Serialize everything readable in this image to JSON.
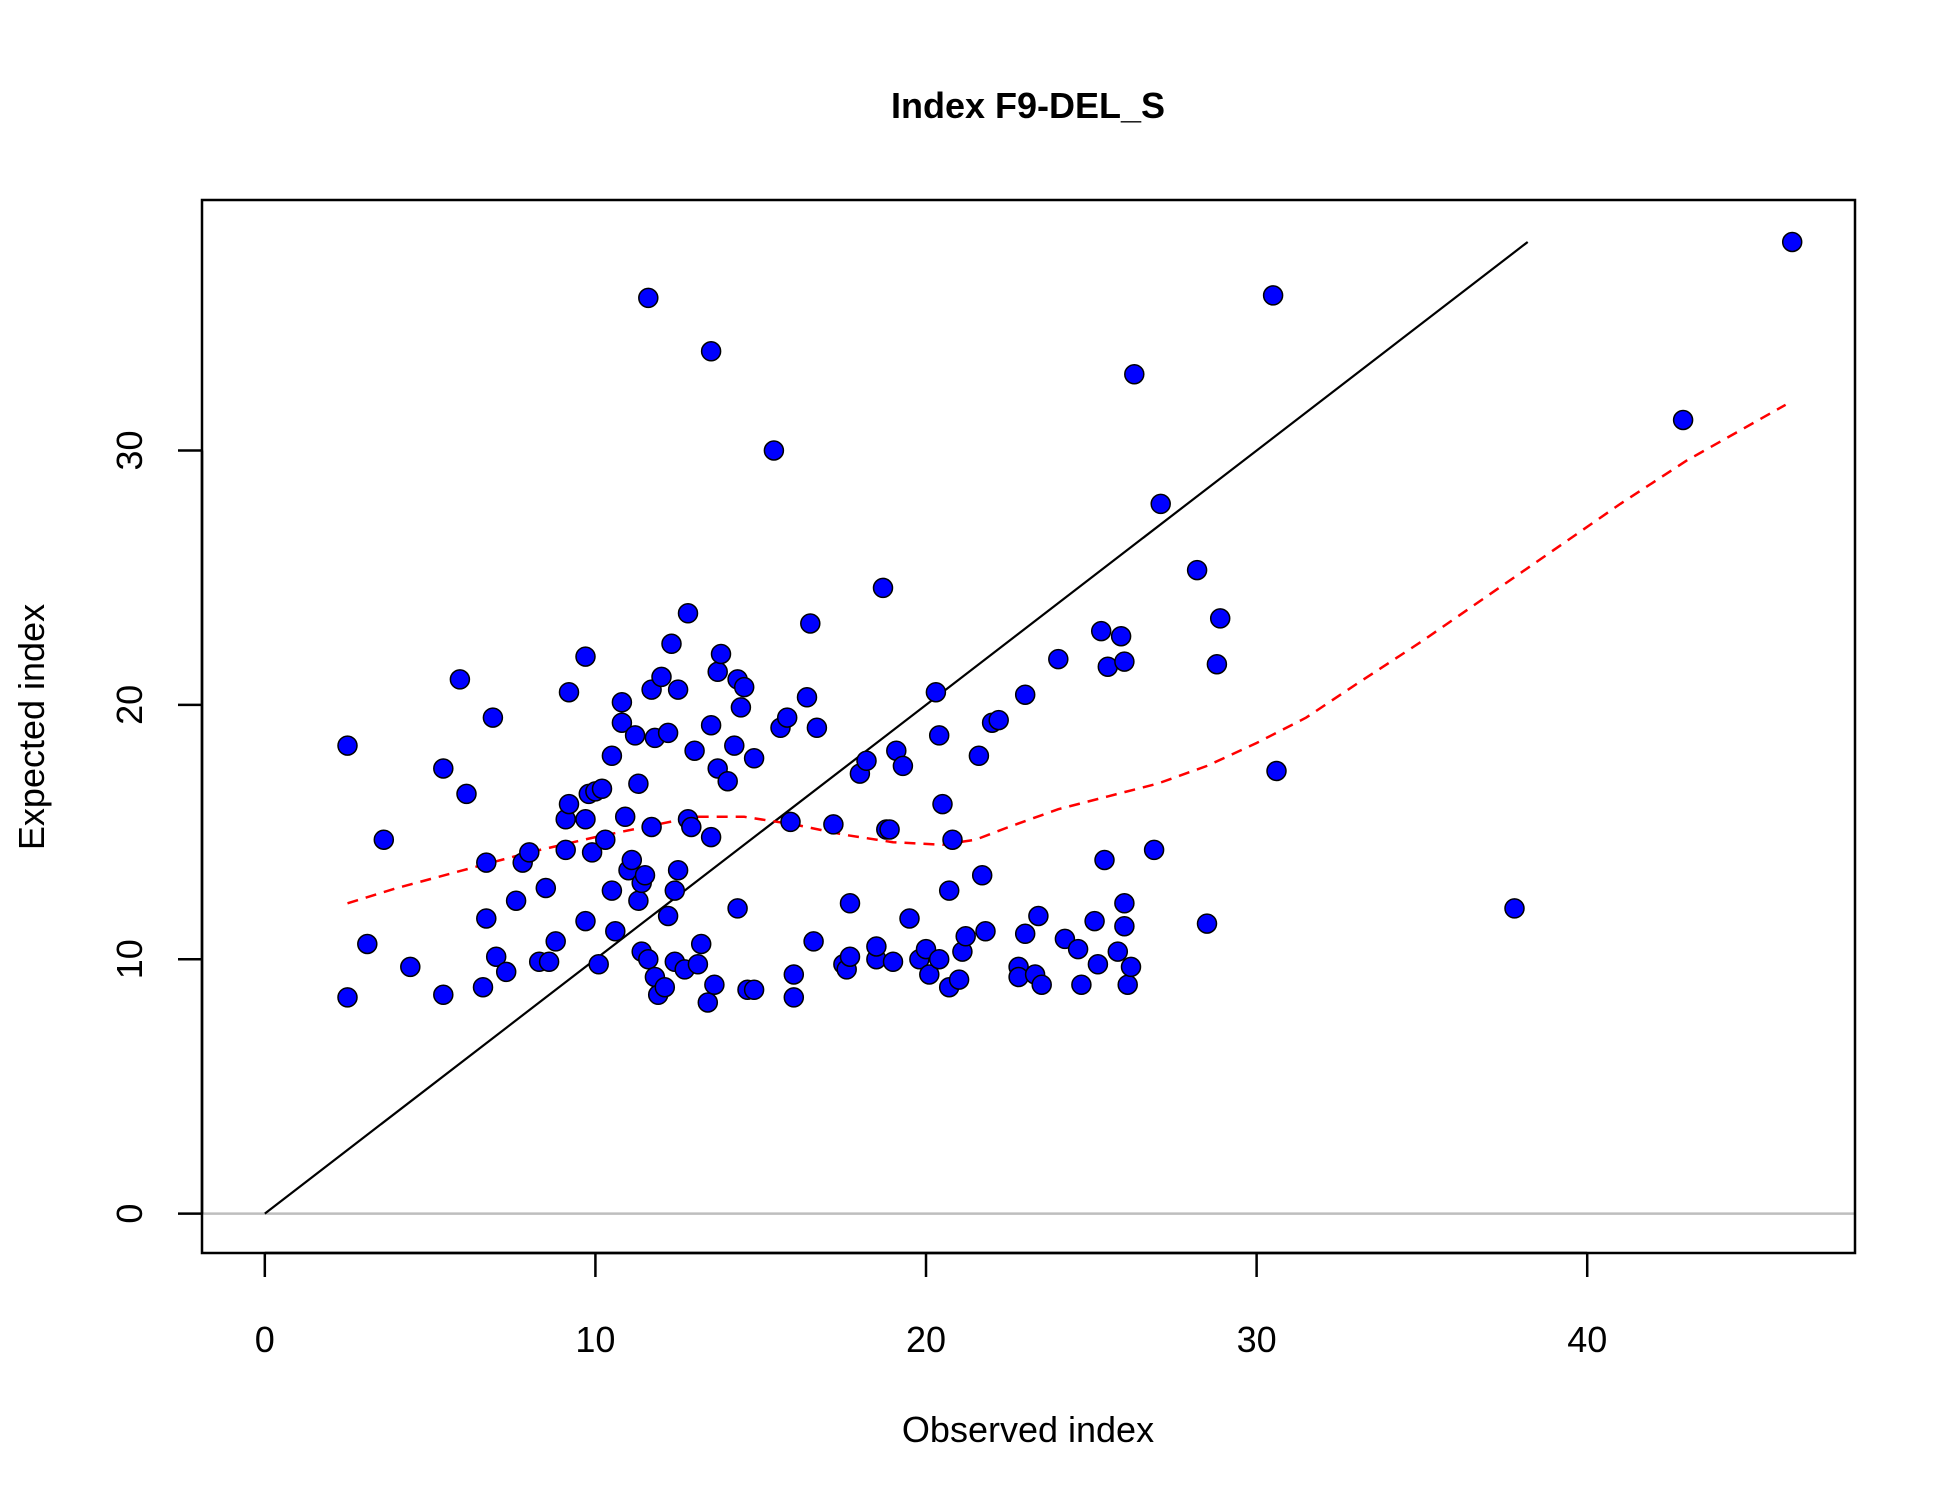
{
  "chart_data": {
    "type": "scatter",
    "title": "Index F9-DEL_S",
    "xlabel": "Observed index",
    "ylabel": "Expected index",
    "xlim": [
      -1.9,
      48.1
    ],
    "ylim": [
      -1.55,
      39.85
    ],
    "xticks": [
      0,
      10,
      20,
      30,
      40
    ],
    "yticks": [
      0,
      10,
      20,
      30
    ],
    "x_tick_labels": [
      "0",
      "10",
      "20",
      "30",
      "40"
    ],
    "y_tick_labels": [
      "0",
      "10",
      "20",
      "30"
    ],
    "grid": false,
    "legend": "none",
    "colors": {
      "points": "#0000ff",
      "point_outline": "#000000",
      "identity_line": "#000000",
      "smooth_line": "#ff0000",
      "zero_line": "#bebebe"
    },
    "reference_lines": {
      "identity": {
        "x": [
          0,
          38.2
        ],
        "y": [
          0,
          38.2
        ]
      },
      "zero": {
        "y": 0
      }
    },
    "smooth_curve": {
      "x": [
        2.5,
        4,
        6,
        8,
        10,
        11.5,
        13,
        14.5,
        16,
        17.5,
        19,
        20.5,
        21.5,
        22.5,
        24,
        25.5,
        27,
        28.5,
        30,
        31.5,
        33,
        35,
        37,
        39,
        41,
        43,
        46
      ],
      "y": [
        12.2,
        12.8,
        13.5,
        14.2,
        14.8,
        15.2,
        15.6,
        15.6,
        15.3,
        14.9,
        14.6,
        14.5,
        14.7,
        15.2,
        15.9,
        16.4,
        16.9,
        17.6,
        18.5,
        19.5,
        20.8,
        22.5,
        24.3,
        26.1,
        27.9,
        29.6,
        31.8
      ]
    },
    "series": [
      {
        "points": [
          [
            2.5,
            18.4
          ],
          [
            2.5,
            8.5
          ],
          [
            3.1,
            10.6
          ],
          [
            3.6,
            14.7
          ],
          [
            4.4,
            9.7
          ],
          [
            5.4,
            17.5
          ],
          [
            5.4,
            8.6
          ],
          [
            5.9,
            21.0
          ],
          [
            6.1,
            16.5
          ],
          [
            6.6,
            8.9
          ],
          [
            6.7,
            11.6
          ],
          [
            6.7,
            13.8
          ],
          [
            6.9,
            19.5
          ],
          [
            7.0,
            10.1
          ],
          [
            7.3,
            9.5
          ],
          [
            7.6,
            12.3
          ],
          [
            7.8,
            13.8
          ],
          [
            8.0,
            14.2
          ],
          [
            8.3,
            9.9
          ],
          [
            8.5,
            12.8
          ],
          [
            8.6,
            9.9
          ],
          [
            8.8,
            10.7
          ],
          [
            9.1,
            14.3
          ],
          [
            9.1,
            15.5
          ],
          [
            9.2,
            16.1
          ],
          [
            9.2,
            20.5
          ],
          [
            9.7,
            21.9
          ],
          [
            9.7,
            15.5
          ],
          [
            9.7,
            11.5
          ],
          [
            9.8,
            16.5
          ],
          [
            9.9,
            14.2
          ],
          [
            10.0,
            16.6
          ],
          [
            10.1,
            9.8
          ],
          [
            10.2,
            16.7
          ],
          [
            10.3,
            14.7
          ],
          [
            10.5,
            18.0
          ],
          [
            10.5,
            12.7
          ],
          [
            10.6,
            11.1
          ],
          [
            10.8,
            20.1
          ],
          [
            10.8,
            19.3
          ],
          [
            10.9,
            15.6
          ],
          [
            11.0,
            13.5
          ],
          [
            11.1,
            13.9
          ],
          [
            11.2,
            18.8
          ],
          [
            11.3,
            16.9
          ],
          [
            11.3,
            12.3
          ],
          [
            11.4,
            13.0
          ],
          [
            11.4,
            10.3
          ],
          [
            11.5,
            13.3
          ],
          [
            11.6,
            10.0
          ],
          [
            11.6,
            36.0
          ],
          [
            11.7,
            15.2
          ],
          [
            11.7,
            20.6
          ],
          [
            11.8,
            18.7
          ],
          [
            11.8,
            9.3
          ],
          [
            11.9,
            8.6
          ],
          [
            12.0,
            21.1
          ],
          [
            12.1,
            8.9
          ],
          [
            12.2,
            11.7
          ],
          [
            12.2,
            18.9
          ],
          [
            12.3,
            22.4
          ],
          [
            12.4,
            9.9
          ],
          [
            12.4,
            12.7
          ],
          [
            12.5,
            20.6
          ],
          [
            12.5,
            13.5
          ],
          [
            12.7,
            9.6
          ],
          [
            12.8,
            23.6
          ],
          [
            12.8,
            15.5
          ],
          [
            12.9,
            15.2
          ],
          [
            13.0,
            18.2
          ],
          [
            13.1,
            9.8
          ],
          [
            13.2,
            10.6
          ],
          [
            13.4,
            8.3
          ],
          [
            13.5,
            14.8
          ],
          [
            13.5,
            19.2
          ],
          [
            13.5,
            33.9
          ],
          [
            13.6,
            9.0
          ],
          [
            13.7,
            21.3
          ],
          [
            13.7,
            17.5
          ],
          [
            13.8,
            22.0
          ],
          [
            14.0,
            17.0
          ],
          [
            14.2,
            18.4
          ],
          [
            14.3,
            12.0
          ],
          [
            14.3,
            21.0
          ],
          [
            14.4,
            19.9
          ],
          [
            14.5,
            20.7
          ],
          [
            14.6,
            8.8
          ],
          [
            14.8,
            8.8
          ],
          [
            14.8,
            17.9
          ],
          [
            15.4,
            30.0
          ],
          [
            15.6,
            19.1
          ],
          [
            15.8,
            19.5
          ],
          [
            15.9,
            15.4
          ],
          [
            16.0,
            9.4
          ],
          [
            16.0,
            8.5
          ],
          [
            16.4,
            20.3
          ],
          [
            16.5,
            23.2
          ],
          [
            16.6,
            10.7
          ],
          [
            16.7,
            19.1
          ],
          [
            17.2,
            15.3
          ],
          [
            17.5,
            9.8
          ],
          [
            17.6,
            9.6
          ],
          [
            17.7,
            12.2
          ],
          [
            17.7,
            10.1
          ],
          [
            18.0,
            17.3
          ],
          [
            18.2,
            17.8
          ],
          [
            18.5,
            10.0
          ],
          [
            18.5,
            10.5
          ],
          [
            18.7,
            24.6
          ],
          [
            18.8,
            15.1
          ],
          [
            18.9,
            15.1
          ],
          [
            19.0,
            9.9
          ],
          [
            19.1,
            18.2
          ],
          [
            19.3,
            17.6
          ],
          [
            19.5,
            11.6
          ],
          [
            19.8,
            10.0
          ],
          [
            20.0,
            10.4
          ],
          [
            20.1,
            9.4
          ],
          [
            20.3,
            20.5
          ],
          [
            20.4,
            10.0
          ],
          [
            20.4,
            18.8
          ],
          [
            20.5,
            16.1
          ],
          [
            20.7,
            8.9
          ],
          [
            20.7,
            12.7
          ],
          [
            20.8,
            14.7
          ],
          [
            21.0,
            9.2
          ],
          [
            21.1,
            10.3
          ],
          [
            21.2,
            10.9
          ],
          [
            21.6,
            18.0
          ],
          [
            21.7,
            13.3
          ],
          [
            21.8,
            11.1
          ],
          [
            22.0,
            19.3
          ],
          [
            22.2,
            19.4
          ],
          [
            22.8,
            9.7
          ],
          [
            22.8,
            9.3
          ],
          [
            23.0,
            20.4
          ],
          [
            23.0,
            11.0
          ],
          [
            23.3,
            9.4
          ],
          [
            23.4,
            11.7
          ],
          [
            23.5,
            9.0
          ],
          [
            24.0,
            21.8
          ],
          [
            24.2,
            10.8
          ],
          [
            24.6,
            10.4
          ],
          [
            24.7,
            9.0
          ],
          [
            25.1,
            11.5
          ],
          [
            25.2,
            9.8
          ],
          [
            25.3,
            22.9
          ],
          [
            25.4,
            13.9
          ],
          [
            25.5,
            21.5
          ],
          [
            25.8,
            10.3
          ],
          [
            25.9,
            22.7
          ],
          [
            26.0,
            11.3
          ],
          [
            26.0,
            12.2
          ],
          [
            26.0,
            21.7
          ],
          [
            26.1,
            9.0
          ],
          [
            26.2,
            9.7
          ],
          [
            26.3,
            33.0
          ],
          [
            26.9,
            14.3
          ],
          [
            27.1,
            27.9
          ],
          [
            28.2,
            25.3
          ],
          [
            28.5,
            11.4
          ],
          [
            28.8,
            21.6
          ],
          [
            28.9,
            23.4
          ],
          [
            30.5,
            36.1
          ],
          [
            30.6,
            17.4
          ],
          [
            37.8,
            12.0
          ],
          [
            42.9,
            31.2
          ],
          [
            46.2,
            38.2
          ]
        ]
      }
    ]
  }
}
